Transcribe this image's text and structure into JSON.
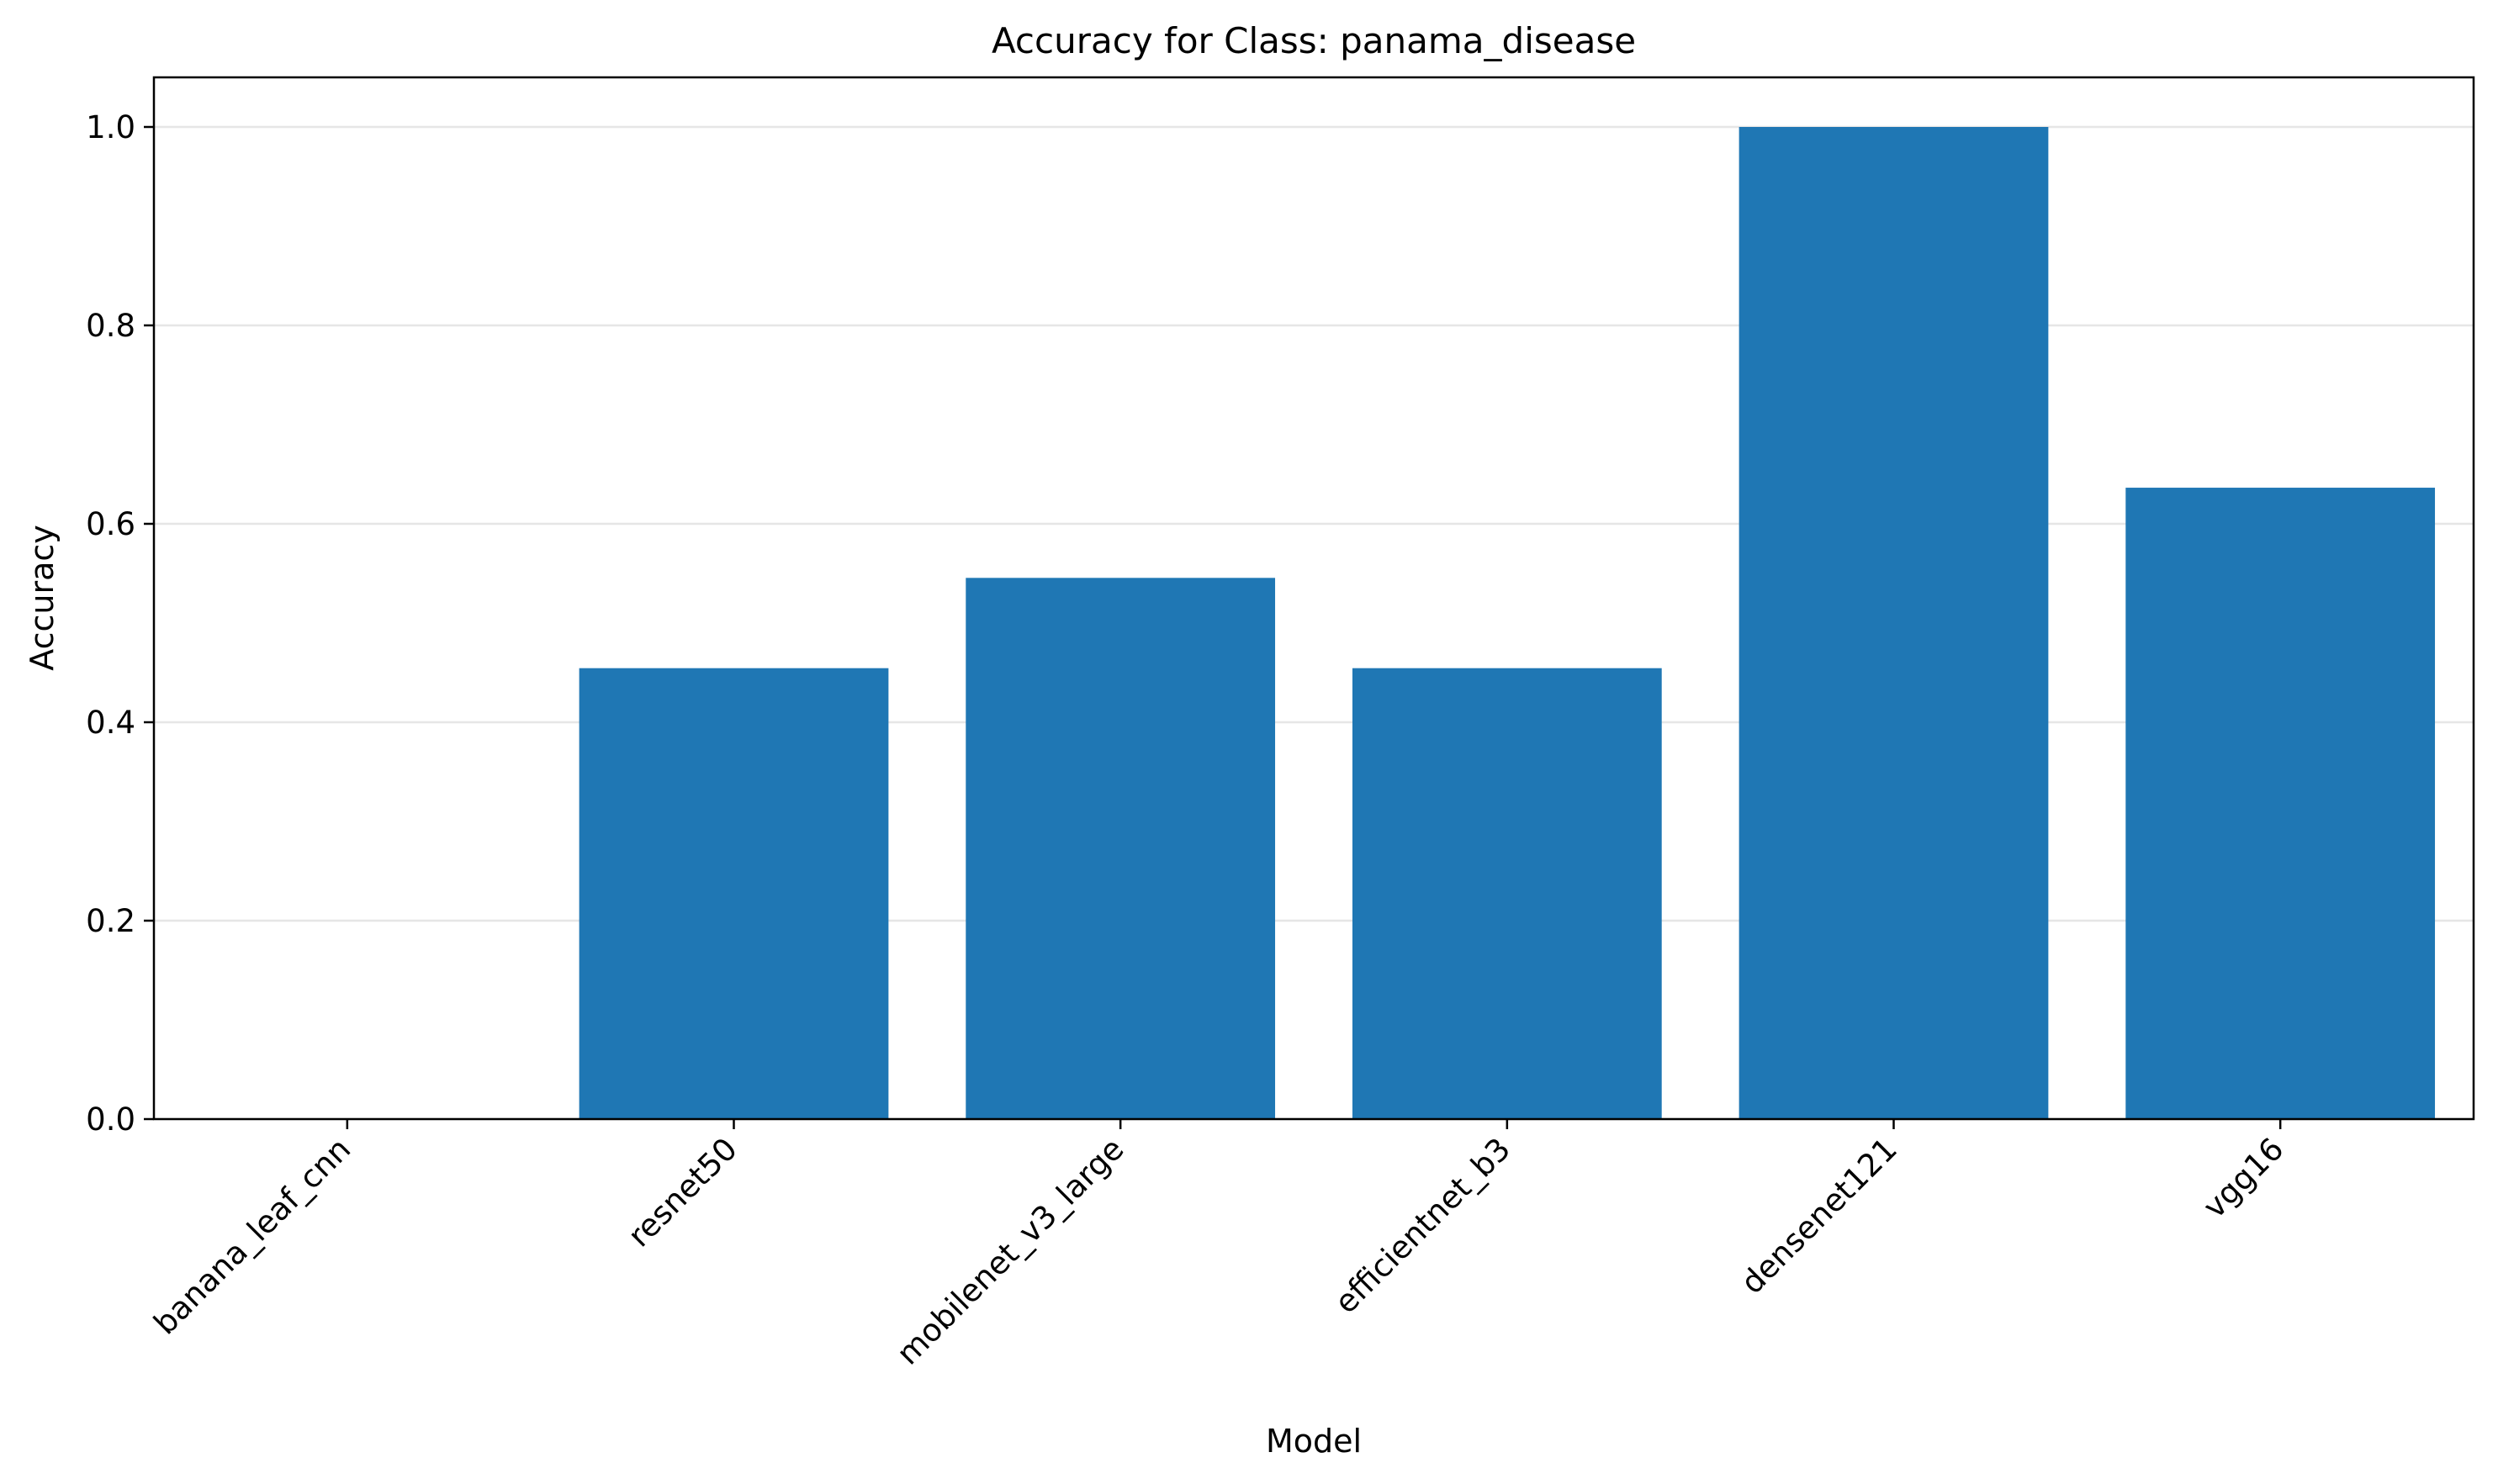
{
  "chart_data": {
    "type": "bar",
    "title": "Accuracy for Class: panama_disease",
    "xlabel": "Model",
    "ylabel": "Accuracy",
    "categories": [
      "banana_leaf_cnn",
      "resnet50",
      "mobilenet_v3_large",
      "efficientnet_b3",
      "densenet121",
      "vgg16"
    ],
    "values": [
      0.0,
      0.4545,
      0.5455,
      0.4545,
      1.0,
      0.6364
    ],
    "ylim": [
      0,
      1.05
    ],
    "yticks": [
      0.0,
      0.2,
      0.4,
      0.6,
      0.8,
      1.0
    ],
    "ytick_labels": [
      "0.0",
      "0.2",
      "0.4",
      "0.6",
      "0.8",
      "1.0"
    ],
    "bar_color": "#1f77b4",
    "grid": "y-major, light gray",
    "legend": "none"
  }
}
